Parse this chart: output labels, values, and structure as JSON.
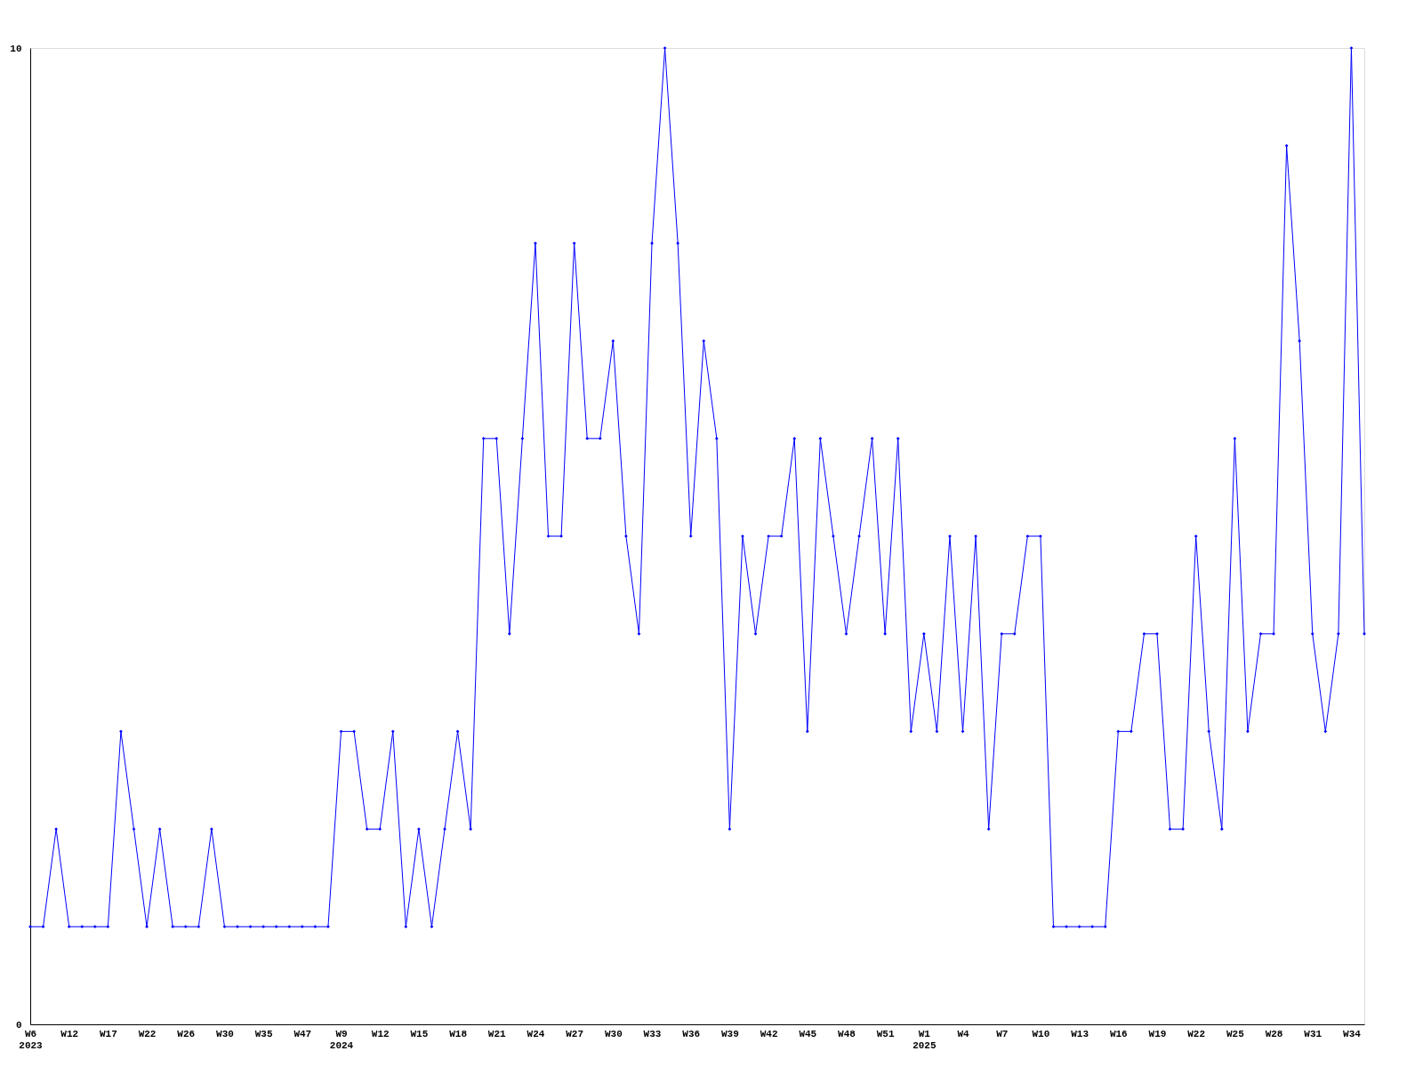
{
  "chart_data": {
    "type": "line",
    "categories": [
      "W6\n2023",
      null,
      null,
      "W12",
      null,
      null,
      "W17",
      null,
      null,
      "W22",
      null,
      null,
      "W26",
      null,
      null,
      "W30",
      null,
      null,
      "W35",
      null,
      null,
      "W47",
      null,
      null,
      "W9\n2024",
      null,
      null,
      "W12",
      null,
      null,
      "W15",
      null,
      null,
      "W18",
      null,
      null,
      "W21",
      null,
      null,
      "W24",
      null,
      null,
      "W27",
      null,
      null,
      "W30",
      null,
      null,
      "W33",
      null,
      null,
      "W36",
      null,
      null,
      "W39",
      null,
      null,
      "W42",
      null,
      null,
      "W45",
      null,
      null,
      "W48",
      null,
      null,
      "W51",
      null,
      null,
      "W1\n2025",
      null,
      null,
      "W4",
      null,
      null,
      "W7",
      null,
      null,
      "W10",
      null,
      null,
      "W13",
      null,
      null,
      "W16",
      null,
      null,
      "W19",
      null,
      null,
      "W22",
      null,
      null,
      "W25",
      null,
      null,
      "W28",
      null,
      null,
      "W31",
      null,
      null,
      "W34",
      null
    ],
    "series": [
      {
        "color": "#0000ff",
        "values": [
          1,
          1,
          2,
          1,
          1,
          1,
          1,
          3,
          2,
          1,
          2,
          1,
          1,
          1,
          2,
          1,
          1,
          1,
          1,
          1,
          1,
          1,
          1,
          1,
          3,
          3,
          2,
          2,
          3,
          1,
          2,
          1,
          2,
          3,
          2,
          6,
          6,
          4,
          6,
          8,
          5,
          5,
          8,
          6,
          6,
          7,
          5,
          4,
          8,
          10,
          8,
          5,
          7,
          6,
          2,
          5,
          4,
          5,
          5,
          6,
          3,
          6,
          5,
          4,
          5,
          6,
          4,
          6,
          3,
          4,
          3,
          5,
          3,
          5,
          2,
          4,
          4,
          5,
          5,
          1,
          1,
          1,
          1,
          1,
          3,
          3,
          4,
          4,
          2,
          2,
          5,
          3,
          2,
          6,
          3,
          4,
          4,
          9,
          7,
          4,
          3,
          4,
          10,
          4
        ]
      }
    ],
    "ylim": [
      0,
      10
    ],
    "yticks": [
      0,
      10
    ],
    "grid": false,
    "marker": "diamond",
    "line_style": "solid"
  }
}
